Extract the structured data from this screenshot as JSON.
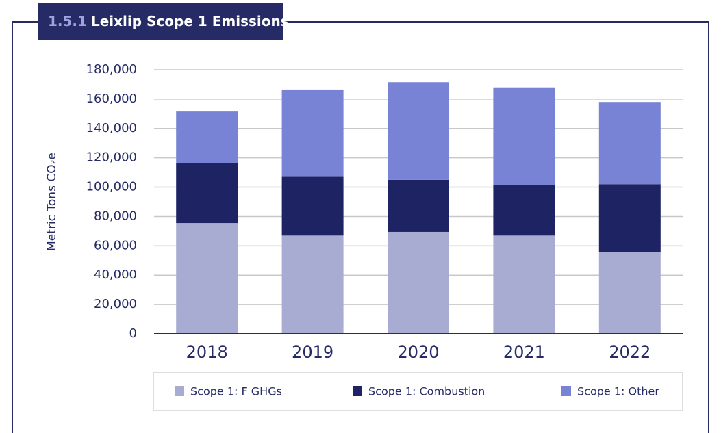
{
  "chart_data": {
    "type": "bar",
    "stacked": true,
    "section": "1.5.1",
    "title": "Leixlip Scope 1 Emissions",
    "y_label": "Metric Tons CO₂e",
    "categories": [
      "2018",
      "2019",
      "2020",
      "2021",
      "2022"
    ],
    "series": [
      {
        "name": "Scope 1: F GHGs",
        "color": "#a9acd2",
        "values": [
          75500,
          67000,
          69500,
          67000,
          55500
        ]
      },
      {
        "name": "Scope 1: Combustion",
        "color": "#1e2463",
        "values": [
          41000,
          40000,
          35500,
          34500,
          46500
        ]
      },
      {
        "name": "Scope 1: Other",
        "color": "#7883d5",
        "values": [
          35000,
          59500,
          66500,
          66500,
          56000
        ]
      }
    ],
    "ylim": [
      0,
      180000
    ],
    "yticks": [
      0,
      {
        "value": 20000,
        "label": "20,000"
      },
      {
        "value": 40000,
        "label": "40,000"
      },
      {
        "value": 60000,
        "label": "60,000"
      },
      {
        "value": 80000,
        "label": "80,000"
      },
      {
        "value": 100000,
        "label": "100,000"
      },
      {
        "value": 120000,
        "label": "120,000"
      },
      {
        "value": 140000,
        "label": "140,000"
      },
      {
        "value": 160000,
        "label": "160,000"
      },
      {
        "value": 180000,
        "label": "180,000"
      }
    ],
    "grid": true,
    "legend": "bottom"
  }
}
